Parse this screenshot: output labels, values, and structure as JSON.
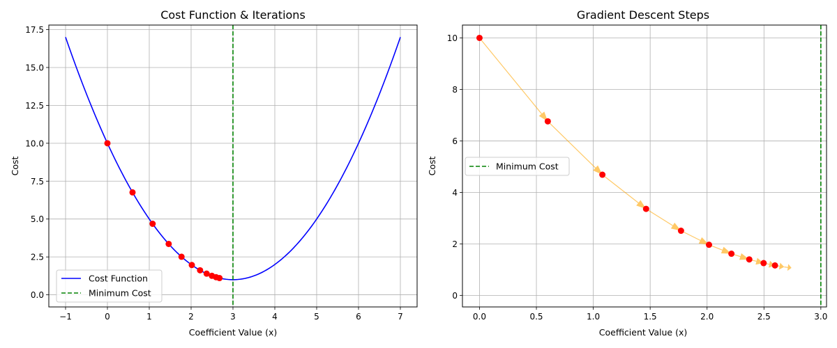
{
  "chart_data": [
    {
      "type": "line",
      "title": "Cost Function & Iterations",
      "xlabel": "Coefficient Value (x)",
      "ylabel": "Cost",
      "xlim": [
        -1.4,
        7.4
      ],
      "ylim": [
        -0.8,
        17.8
      ],
      "xticks": [
        -1,
        0,
        1,
        2,
        3,
        4,
        5,
        6,
        7
      ],
      "yticks": [
        0.0,
        2.5,
        5.0,
        7.5,
        10.0,
        12.5,
        15.0,
        17.5
      ],
      "grid": true,
      "legend_position": "lower-left",
      "series": [
        {
          "name": "Cost Function",
          "kind": "curve",
          "function": "(x-3)^2+1",
          "x_range": [
            -1,
            7
          ],
          "color": "#0000ff"
        },
        {
          "name": "Minimum Cost",
          "kind": "vline",
          "x": 3,
          "color": "#008000",
          "dash": true
        },
        {
          "name": "",
          "kind": "scatter",
          "color": "#ff0000",
          "x": [
            0.0,
            0.6,
            1.08,
            1.464,
            1.771,
            2.017,
            2.214,
            2.371,
            2.497,
            2.597,
            2.678
          ],
          "y": [
            10.0,
            6.76,
            4.686,
            3.359,
            2.51,
            1.966,
            1.618,
            1.396,
            1.253,
            1.162,
            1.104
          ]
        }
      ]
    },
    {
      "type": "line",
      "title": "Gradient Descent Steps",
      "xlabel": "Coefficient Value (x)",
      "ylabel": "Cost",
      "xlim": [
        -0.15,
        3.05
      ],
      "ylim": [
        -0.45,
        10.5
      ],
      "xticks": [
        0.0,
        0.5,
        1.0,
        1.5,
        2.0,
        2.5,
        3.0
      ],
      "yticks": [
        0,
        2,
        4,
        6,
        8,
        10
      ],
      "grid": true,
      "legend_position": "center-left",
      "series": [
        {
          "name": "Minimum Cost",
          "kind": "vline",
          "x": 3,
          "color": "#008000",
          "dash": true
        },
        {
          "name": "",
          "kind": "arrows",
          "color": "#ffa500",
          "x": [
            0.0,
            0.6,
            1.08,
            1.464,
            1.771,
            2.017,
            2.214,
            2.371,
            2.497,
            2.597,
            2.678,
            2.742
          ],
          "y": [
            10.0,
            6.76,
            4.686,
            3.359,
            2.51,
            1.966,
            1.618,
            1.396,
            1.253,
            1.162,
            1.104,
            1.066
          ]
        },
        {
          "name": "",
          "kind": "scatter",
          "color": "#ff0000",
          "x": [
            0.0,
            0.6,
            1.08,
            1.464,
            1.771,
            2.017,
            2.214,
            2.371,
            2.497,
            2.597
          ],
          "y": [
            10.0,
            6.76,
            4.686,
            3.359,
            2.51,
            1.966,
            1.618,
            1.396,
            1.253,
            1.162
          ]
        }
      ]
    }
  ]
}
